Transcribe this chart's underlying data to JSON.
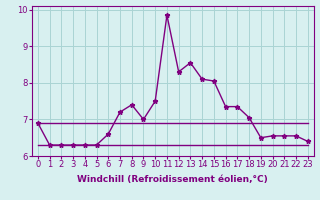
{
  "x": [
    0,
    1,
    2,
    3,
    4,
    5,
    6,
    7,
    8,
    9,
    10,
    11,
    12,
    13,
    14,
    15,
    16,
    17,
    18,
    19,
    20,
    21,
    22,
    23
  ],
  "y_flat_high": [
    6.9,
    6.9,
    6.9,
    6.9,
    6.9,
    6.9,
    6.9,
    6.9,
    6.9,
    6.9,
    6.9,
    6.9,
    6.9,
    6.9,
    6.9,
    6.9,
    6.9,
    6.9,
    6.9,
    6.9,
    6.9,
    6.9,
    6.9,
    6.9
  ],
  "y_flat_low": [
    6.3,
    6.3,
    6.3,
    6.3,
    6.3,
    6.3,
    6.3,
    6.3,
    6.3,
    6.3,
    6.3,
    6.3,
    6.3,
    6.3,
    6.3,
    6.3,
    6.3,
    6.3,
    6.3,
    6.3,
    6.3,
    6.3,
    6.3,
    6.3
  ],
  "y_main": [
    6.9,
    6.3,
    6.3,
    6.3,
    6.3,
    6.3,
    6.6,
    7.2,
    7.4,
    7.0,
    7.5,
    9.85,
    8.3,
    8.55,
    8.1,
    8.05,
    7.35,
    7.35,
    7.05,
    6.5,
    6.55,
    6.55,
    6.55,
    6.4
  ],
  "color": "#800080",
  "background": "#d8f0f0",
  "grid_color": "#aad4d4",
  "xlabel": "Windchill (Refroidissement éolien,°C)",
  "ylim": [
    6.0,
    10.1
  ],
  "xlim": [
    -0.5,
    23.5
  ],
  "yticks": [
    6,
    7,
    8,
    9,
    10
  ],
  "xticks": [
    0,
    1,
    2,
    3,
    4,
    5,
    6,
    7,
    8,
    9,
    10,
    11,
    12,
    13,
    14,
    15,
    16,
    17,
    18,
    19,
    20,
    21,
    22,
    23
  ],
  "xlabel_fontsize": 6.5,
  "tick_fontsize": 6,
  "linewidth": 1.0,
  "markersize": 3.5
}
